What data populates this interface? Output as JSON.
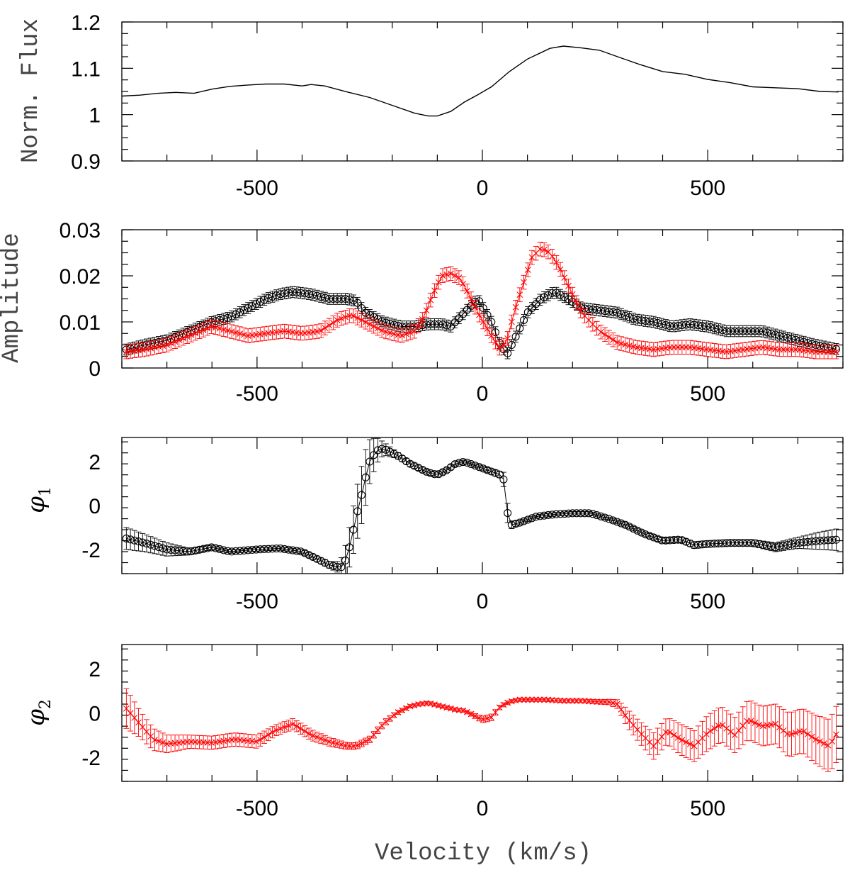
{
  "chart_data": [
    {
      "type": "line",
      "ylabel": "Norm. Flux",
      "xlabel": "",
      "xlim": [
        -800,
        800
      ],
      "ylim": [
        0.9,
        1.2
      ],
      "xticks": [
        -500,
        0,
        500
      ],
      "yticks": [
        0.9,
        1,
        1.1,
        1.2
      ],
      "ytick_labels": [
        "0.9",
        "1",
        "1.1",
        "1.2"
      ],
      "series": [
        {
          "color": "#000000",
          "marker": "none",
          "errorbars": false,
          "x": [
            -800,
            -760,
            -720,
            -680,
            -640,
            -600,
            -560,
            -520,
            -480,
            -440,
            -400,
            -380,
            -350,
            -300,
            -250,
            -200,
            -150,
            -120,
            -100,
            -70,
            -40,
            -10,
            20,
            60,
            100,
            150,
            180,
            220,
            260,
            300,
            350,
            400,
            450,
            500,
            550,
            600,
            650,
            700,
            750,
            790
          ],
          "y": [
            1.04,
            1.042,
            1.046,
            1.048,
            1.046,
            1.055,
            1.061,
            1.064,
            1.066,
            1.066,
            1.062,
            1.065,
            1.062,
            1.049,
            1.037,
            1.02,
            1.003,
            0.997,
            0.997,
            1.007,
            1.027,
            1.043,
            1.06,
            1.093,
            1.12,
            1.143,
            1.148,
            1.144,
            1.139,
            1.125,
            1.108,
            1.093,
            1.087,
            1.076,
            1.069,
            1.06,
            1.058,
            1.056,
            1.05,
            1.049
          ]
        }
      ]
    },
    {
      "type": "scatter",
      "ylabel": "Amplitude",
      "xlabel": "",
      "xlim": [
        -800,
        800
      ],
      "ylim": [
        0,
        0.03
      ],
      "xticks": [
        -500,
        0,
        500
      ],
      "yticks": [
        0,
        0.01,
        0.02,
        0.03
      ],
      "ytick_labels": [
        "0",
        "0.01",
        "0.02",
        "0.03"
      ],
      "series": [
        {
          "color": "#000000",
          "marker": "circle",
          "errorbars": true,
          "x": [
            -790,
            -750,
            -700,
            -650,
            -600,
            -560,
            -520,
            -480,
            -450,
            -420,
            -380,
            -340,
            -300,
            -280,
            -260,
            -220,
            -180,
            -150,
            -120,
            -90,
            -70,
            -40,
            -10,
            20,
            40,
            55,
            70,
            100,
            130,
            160,
            190,
            220,
            260,
            300,
            340,
            380,
            420,
            460,
            500,
            540,
            580,
            620,
            660,
            700,
            740,
            790
          ],
          "y": [
            0.004,
            0.005,
            0.006,
            0.008,
            0.01,
            0.011,
            0.013,
            0.015,
            0.016,
            0.0165,
            0.016,
            0.015,
            0.015,
            0.0145,
            0.012,
            0.01,
            0.009,
            0.009,
            0.0095,
            0.0095,
            0.009,
            0.012,
            0.015,
            0.01,
            0.005,
            0.003,
            0.006,
            0.012,
            0.015,
            0.0165,
            0.015,
            0.013,
            0.0125,
            0.012,
            0.0105,
            0.01,
            0.009,
            0.0095,
            0.009,
            0.008,
            0.008,
            0.008,
            0.007,
            0.006,
            0.005,
            0.004
          ],
          "err": 0.0012
        },
        {
          "color": "#ff0000",
          "marker": "x",
          "errorbars": true,
          "x": [
            -790,
            -750,
            -700,
            -650,
            -600,
            -560,
            -520,
            -480,
            -440,
            -400,
            -360,
            -320,
            -290,
            -260,
            -220,
            -180,
            -150,
            -130,
            -110,
            -90,
            -70,
            -50,
            -30,
            -10,
            20,
            40,
            55,
            70,
            90,
            110,
            130,
            150,
            170,
            190,
            220,
            260,
            300,
            340,
            380,
            420,
            460,
            500,
            540,
            580,
            620,
            660,
            700,
            740,
            790
          ],
          "y": [
            0.0035,
            0.004,
            0.005,
            0.007,
            0.009,
            0.008,
            0.007,
            0.0075,
            0.008,
            0.0075,
            0.008,
            0.0105,
            0.0115,
            0.01,
            0.008,
            0.007,
            0.008,
            0.011,
            0.016,
            0.02,
            0.0205,
            0.0195,
            0.016,
            0.012,
            0.007,
            0.004,
            0.006,
            0.012,
            0.018,
            0.024,
            0.026,
            0.025,
            0.022,
            0.018,
            0.012,
            0.008,
            0.0055,
            0.0045,
            0.004,
            0.0045,
            0.0045,
            0.004,
            0.0035,
            0.004,
            0.0045,
            0.004,
            0.004,
            0.0035,
            0.0035
          ],
          "err": 0.0015
        }
      ]
    },
    {
      "type": "scatter",
      "ylabel": "φ1",
      "xlabel": "",
      "xlim": [
        -800,
        800
      ],
      "ylim": [
        -3.1,
        3.1
      ],
      "xticks": [
        -500,
        0,
        500
      ],
      "yticks": [
        -2,
        0,
        2
      ],
      "ytick_labels": [
        "-2",
        "0",
        "2"
      ],
      "series": [
        {
          "color": "#000000",
          "marker": "circle",
          "errorbars": true,
          "x": [
            -790,
            -750,
            -700,
            -650,
            -600,
            -560,
            -500,
            -450,
            -400,
            -370,
            -340,
            -320,
            -310,
            -300,
            -290,
            -280,
            -270,
            -260,
            -250,
            -235,
            -220,
            -190,
            -160,
            -140,
            -120,
            -100,
            -80,
            -60,
            -40,
            -20,
            0,
            20,
            40,
            50,
            55,
            60,
            80,
            120,
            160,
            200,
            240,
            280,
            320,
            360,
            400,
            440,
            470,
            500,
            550,
            600,
            650,
            700,
            750,
            790
          ],
          "y": [
            -1.5,
            -1.7,
            -2.0,
            -2.1,
            -1.9,
            -2.1,
            -2.0,
            -1.95,
            -2.1,
            -2.4,
            -2.7,
            -2.8,
            -2.8,
            -2.3,
            -1.5,
            -0.5,
            0.3,
            1.2,
            2.0,
            2.5,
            2.6,
            2.3,
            1.9,
            1.7,
            1.5,
            1.4,
            1.6,
            1.9,
            2.0,
            1.85,
            1.7,
            1.55,
            1.4,
            1.1,
            -0.2,
            -0.9,
            -0.8,
            -0.5,
            -0.4,
            -0.35,
            -0.35,
            -0.6,
            -0.9,
            -1.3,
            -1.6,
            -1.55,
            -1.8,
            -1.75,
            -1.7,
            -1.7,
            -1.9,
            -1.7,
            -1.6,
            -1.55
          ],
          "err": [
            0.5,
            0.4,
            0.3,
            0.15,
            0.1,
            0.08,
            0.08,
            0.08,
            0.1,
            0.12,
            0.15,
            0.25,
            0.5,
            0.8,
            1.0,
            1.2,
            1.3,
            1.3,
            1.0,
            0.6,
            0.3,
            0.15,
            0.12,
            0.12,
            0.1,
            0.1,
            0.1,
            0.1,
            0.08,
            0.08,
            0.1,
            0.12,
            0.15,
            0.4,
            0.5,
            0.2,
            0.1,
            0.08,
            0.08,
            0.08,
            0.08,
            0.08,
            0.1,
            0.1,
            0.12,
            0.12,
            0.15,
            0.15,
            0.15,
            0.15,
            0.2,
            0.25,
            0.4,
            0.5
          ]
        }
      ]
    },
    {
      "type": "scatter",
      "ylabel": "φ2",
      "xlabel": "Velocity (km/s)",
      "xlim": [
        -800,
        800
      ],
      "ylim": [
        -3.1,
        3.1
      ],
      "xticks": [
        -500,
        0,
        500
      ],
      "yticks": [
        -2,
        0,
        2
      ],
      "ytick_labels": [
        "-2",
        "0",
        "2"
      ],
      "series": [
        {
          "color": "#ff0000",
          "marker": "x",
          "errorbars": true,
          "x": [
            -790,
            -760,
            -730,
            -700,
            -650,
            -600,
            -550,
            -500,
            -460,
            -420,
            -380,
            -340,
            -300,
            -280,
            -250,
            -220,
            -190,
            -160,
            -140,
            -120,
            -100,
            -80,
            -60,
            -40,
            -20,
            0,
            20,
            40,
            60,
            80,
            100,
            140,
            180,
            220,
            260,
            280,
            300,
            320,
            350,
            380,
            410,
            440,
            470,
            500,
            530,
            560,
            590,
            620,
            650,
            680,
            710,
            740,
            770,
            790
          ],
          "y": [
            0.2,
            -0.5,
            -1.2,
            -1.4,
            -1.3,
            -1.35,
            -1.2,
            -1.3,
            -0.8,
            -0.5,
            -1.0,
            -1.3,
            -1.5,
            -1.5,
            -1.2,
            -0.5,
            0.0,
            0.3,
            0.4,
            0.45,
            0.35,
            0.25,
            0.15,
            0.1,
            -0.1,
            -0.3,
            -0.2,
            0.3,
            0.5,
            0.6,
            0.6,
            0.6,
            0.55,
            0.55,
            0.5,
            0.5,
            0.4,
            -0.2,
            -0.9,
            -1.5,
            -0.8,
            -1.2,
            -1.5,
            -0.9,
            -0.5,
            -1.0,
            -0.3,
            -0.6,
            -0.5,
            -1.0,
            -0.8,
            -1.2,
            -1.5,
            -0.8
          ],
          "err": [
            0.9,
            0.6,
            0.5,
            0.4,
            0.3,
            0.3,
            0.3,
            0.3,
            0.25,
            0.25,
            0.25,
            0.2,
            0.15,
            0.15,
            0.15,
            0.15,
            0.1,
            0.08,
            0.08,
            0.08,
            0.08,
            0.08,
            0.08,
            0.08,
            0.1,
            0.15,
            0.15,
            0.1,
            0.08,
            0.08,
            0.08,
            0.08,
            0.08,
            0.08,
            0.1,
            0.12,
            0.2,
            0.4,
            0.5,
            0.6,
            0.6,
            0.7,
            0.7,
            0.8,
            0.8,
            0.8,
            0.9,
            0.9,
            0.9,
            1.0,
            1.0,
            1.1,
            1.2,
            1.3
          ]
        }
      ]
    }
  ]
}
